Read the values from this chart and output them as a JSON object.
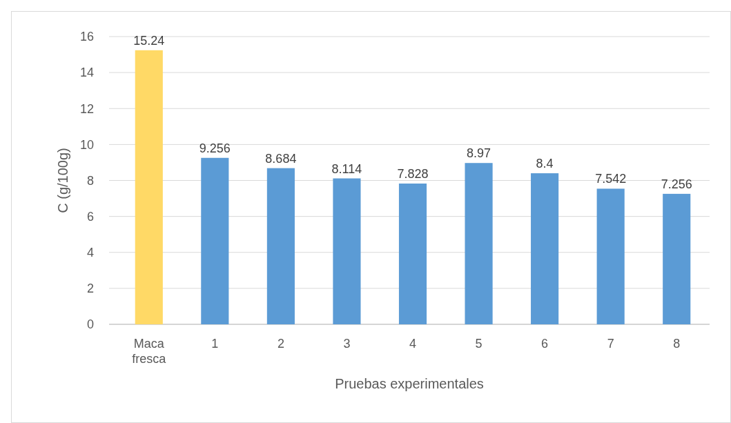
{
  "chart_data": {
    "type": "bar",
    "categories": [
      "Maca fresca",
      "1",
      "2",
      "3",
      "4",
      "5",
      "6",
      "7",
      "8"
    ],
    "values": [
      15.24,
      9.256,
      8.684,
      8.114,
      7.828,
      8.97,
      8.4,
      7.542,
      7.256
    ],
    "colors": [
      "#ffd966",
      "#5b9bd5",
      "#5b9bd5",
      "#5b9bd5",
      "#5b9bd5",
      "#5b9bd5",
      "#5b9bd5",
      "#5b9bd5",
      "#5b9bd5"
    ],
    "ylim": [
      0,
      16
    ],
    "yticks": [
      0,
      2,
      4,
      6,
      8,
      10,
      12,
      14,
      16
    ],
    "grid": "y",
    "data_labels": true,
    "xlabel": "Pruebas experimentales",
    "ylabel": "C (g/100g)"
  }
}
